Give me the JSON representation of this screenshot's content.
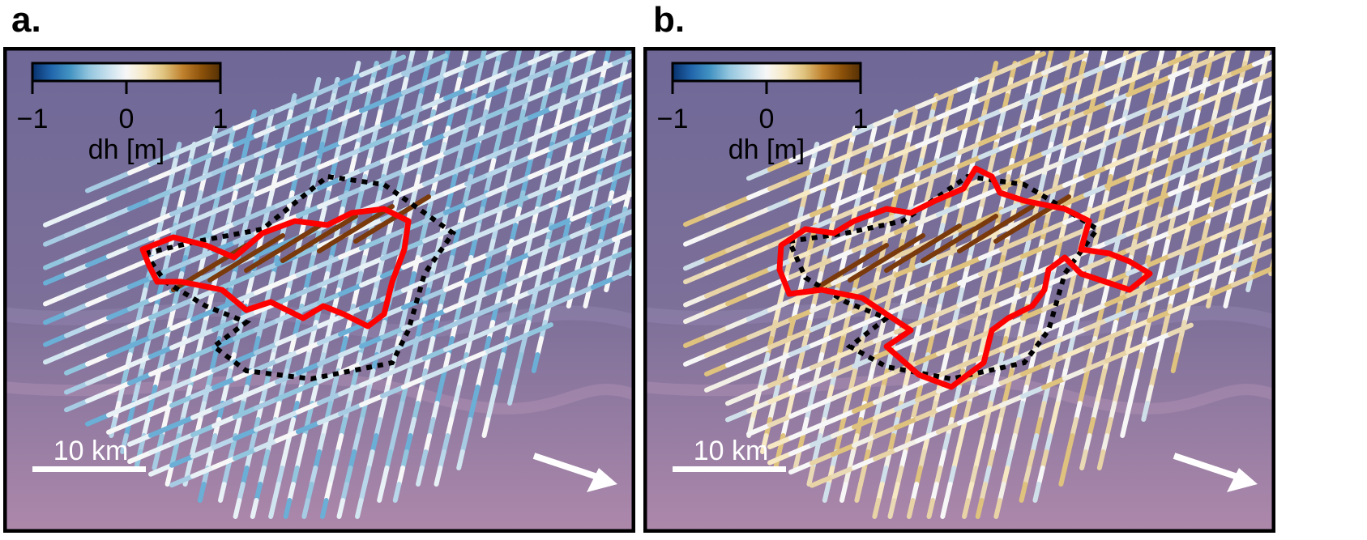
{
  "panels": [
    {
      "label": "a.",
      "colorbar": {
        "label": "dh [m]",
        "ticks": [
          "−1",
          "0",
          "1"
        ],
        "range": [
          -1,
          1
        ]
      },
      "scalebar": {
        "label": "10 km"
      },
      "track_tint": "blue",
      "outline_colors": {
        "red_contour": "#ff0000",
        "dashed_outline": "#000000"
      }
    },
    {
      "label": "b.",
      "colorbar": {
        "label": "dh [m]",
        "ticks": [
          "−1",
          "0",
          "1"
        ],
        "range": [
          -1,
          1
        ]
      },
      "scalebar": {
        "label": "10 km"
      },
      "track_tint": "tan",
      "outline_colors": {
        "red_contour": "#ff0000",
        "dashed_outline": "#000000"
      }
    }
  ],
  "colormap": [
    "#08306b",
    "#2166ac",
    "#4393c3",
    "#92c5de",
    "#d1e5f0",
    "#f7f7f7",
    "#f6e8c3",
    "#dfc27d",
    "#bf812d",
    "#8c510a",
    "#543005"
  ],
  "background": {
    "top": "#6f6897",
    "bottom": "#a983a8"
  }
}
